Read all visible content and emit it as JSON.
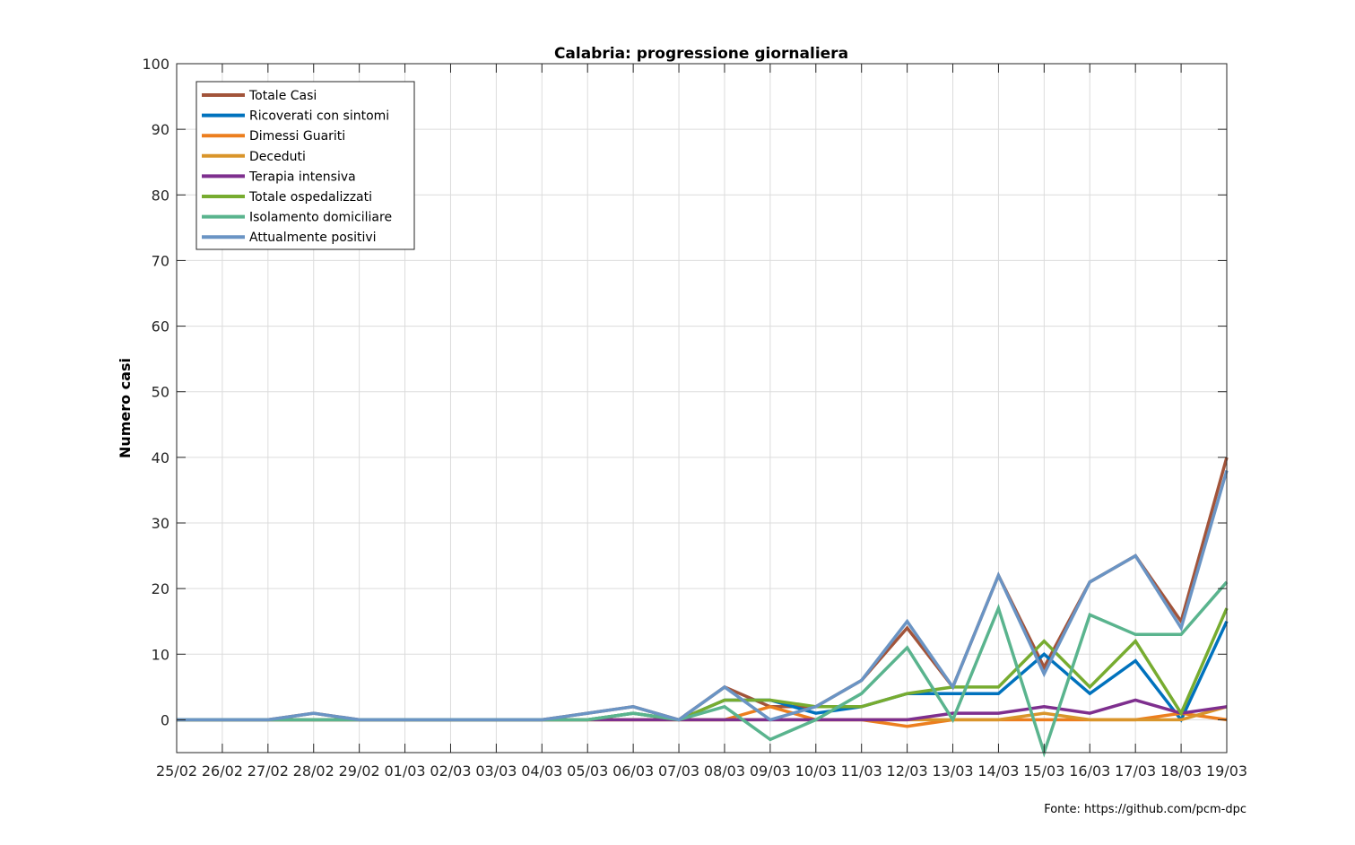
{
  "chart_data": {
    "type": "line",
    "title": "Calabria: progressione giornaliera",
    "xlabel": "",
    "ylabel": "Numero casi",
    "ylim": [
      -5,
      100
    ],
    "yticks": [
      0,
      10,
      20,
      30,
      40,
      50,
      60,
      70,
      80,
      90,
      100
    ],
    "grid": true,
    "legend_position": "top-left",
    "categories": [
      "25/02",
      "26/02",
      "27/02",
      "28/02",
      "29/02",
      "01/03",
      "02/03",
      "03/03",
      "04/03",
      "05/03",
      "06/03",
      "07/03",
      "08/03",
      "09/03",
      "10/03",
      "11/03",
      "12/03",
      "13/03",
      "14/03",
      "15/03",
      "16/03",
      "17/03",
      "18/03",
      "19/03"
    ],
    "series": [
      {
        "name": "Totale Casi",
        "color": "#A2543A",
        "values": [
          0,
          0,
          0,
          1,
          0,
          0,
          0,
          0,
          0,
          1,
          2,
          0,
          5,
          2,
          2,
          6,
          14,
          5,
          22,
          8,
          21,
          25,
          15,
          40
        ]
      },
      {
        "name": "Ricoverati con sintomi",
        "color": "#0072BD",
        "values": [
          0,
          0,
          0,
          0,
          0,
          0,
          0,
          0,
          0,
          0,
          1,
          0,
          3,
          3,
          1,
          2,
          4,
          4,
          4,
          10,
          4,
          9,
          0,
          15
        ]
      },
      {
        "name": "Dimessi Guariti",
        "color": "#EC7E1E",
        "values": [
          0,
          0,
          0,
          0,
          0,
          0,
          0,
          0,
          0,
          0,
          0,
          0,
          0,
          2,
          0,
          0,
          -1,
          0,
          0,
          0,
          0,
          0,
          1,
          0
        ]
      },
      {
        "name": "Deceduti",
        "color": "#D9952B",
        "values": [
          0,
          0,
          0,
          0,
          0,
          0,
          0,
          0,
          0,
          0,
          0,
          0,
          0,
          0,
          0,
          0,
          0,
          0,
          0,
          1,
          0,
          0,
          0,
          2
        ]
      },
      {
        "name": "Terapia intensiva",
        "color": "#7E2F8E",
        "values": [
          0,
          0,
          0,
          0,
          0,
          0,
          0,
          0,
          0,
          0,
          0,
          0,
          0,
          0,
          0,
          0,
          0,
          1,
          1,
          2,
          1,
          3,
          1,
          2
        ]
      },
      {
        "name": "Totale ospedalizzati",
        "color": "#77AC30",
        "values": [
          0,
          0,
          0,
          0,
          0,
          0,
          0,
          0,
          0,
          0,
          1,
          0,
          3,
          3,
          2,
          2,
          4,
          5,
          5,
          12,
          5,
          12,
          1,
          17
        ]
      },
      {
        "name": "Isolamento domiciliare",
        "color": "#5AB48E",
        "values": [
          0,
          0,
          0,
          0,
          0,
          0,
          0,
          0,
          0,
          0,
          1,
          0,
          2,
          -3,
          0,
          4,
          11,
          0,
          17,
          -5,
          16,
          13,
          13,
          21
        ]
      },
      {
        "name": "Attualmente positivi",
        "color": "#6A94C4",
        "values": [
          0,
          0,
          0,
          1,
          0,
          0,
          0,
          0,
          0,
          1,
          2,
          0,
          5,
          0,
          2,
          6,
          15,
          5,
          22,
          7,
          21,
          25,
          14,
          38
        ]
      }
    ]
  },
  "source_note": "Fonte: https://github.com/pcm-dpc"
}
